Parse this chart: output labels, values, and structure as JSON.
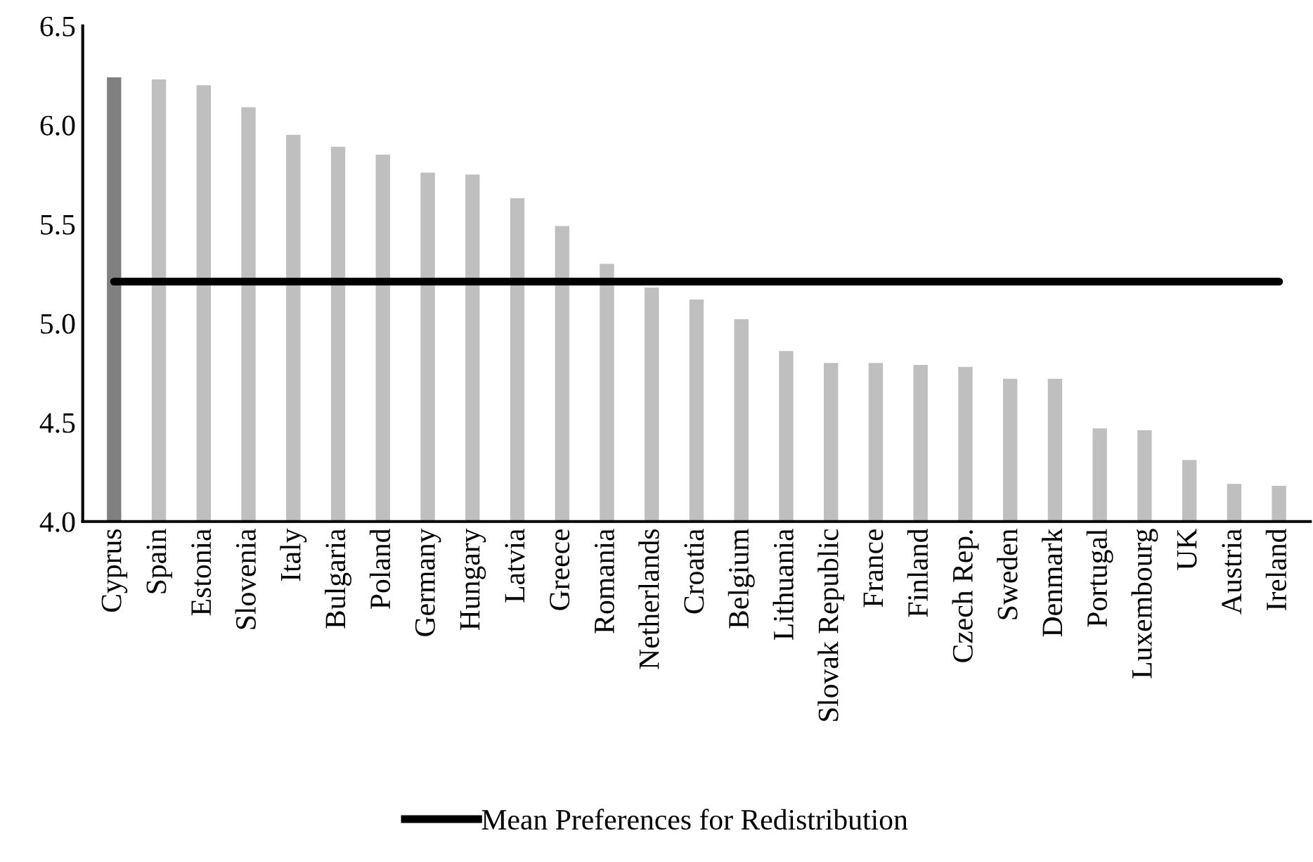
{
  "chart_data": {
    "type": "bar",
    "categories": [
      "Cyprus",
      "Spain",
      "Estonia",
      "Slovenia",
      "Italy",
      "Bulgaria",
      "Poland",
      "Germany",
      "Hungary",
      "Latvia",
      "Greece",
      "Romania",
      "Netherlands",
      "Croatia",
      "Belgium",
      "Lithuania",
      "Slovak Republic",
      "France",
      "Finland",
      "Czech Rep.",
      "Sweden",
      "Denmark",
      "Portugal",
      "Luxembourg",
      "UK",
      "Austria",
      "Ireland"
    ],
    "series": [
      {
        "colors": [
          "#808080",
          "#bfbfbf",
          "#bfbfbf",
          "#bfbfbf",
          "#bfbfbf",
          "#bfbfbf",
          "#bfbfbf",
          "#bfbfbf",
          "#bfbfbf",
          "#bfbfbf",
          "#bfbfbf",
          "#bfbfbf",
          "#bfbfbf",
          "#bfbfbf",
          "#bfbfbf",
          "#bfbfbf",
          "#bfbfbf",
          "#bfbfbf",
          "#bfbfbf",
          "#bfbfbf",
          "#bfbfbf",
          "#bfbfbf",
          "#bfbfbf",
          "#bfbfbf",
          "#bfbfbf",
          "#bfbfbf",
          "#bfbfbf"
        ],
        "values": [
          6.24,
          6.23,
          6.2,
          6.09,
          5.95,
          5.89,
          5.85,
          5.76,
          5.75,
          5.63,
          5.49,
          5.3,
          5.18,
          5.12,
          5.02,
          4.86,
          4.8,
          4.8,
          4.79,
          4.78,
          4.72,
          4.72,
          4.47,
          4.46,
          4.31,
          4.19,
          4.18
        ]
      },
      {
        "type": "line",
        "name": "Mean Preferences for Redistribution",
        "color": "#000000",
        "values": [
          5.21,
          5.21,
          5.21,
          5.21,
          5.21,
          5.21,
          5.21,
          5.21,
          5.21,
          5.21,
          5.21,
          5.21,
          5.21,
          5.21,
          5.21,
          5.21,
          5.21,
          5.21,
          5.21,
          5.21,
          5.21,
          5.21,
          5.21,
          5.21,
          5.21,
          5.21,
          5.21
        ]
      }
    ],
    "ylim": [
      4.0,
      6.5
    ],
    "yticks": [
      {
        "value": 4.0,
        "label": "4.0"
      },
      {
        "value": 4.5,
        "label": "4.5"
      },
      {
        "value": 5.0,
        "label": "5.0"
      },
      {
        "value": 5.5,
        "label": "5.5"
      },
      {
        "value": 6.0,
        "label": "6.0"
      },
      {
        "value": 6.5,
        "label": "6.5"
      }
    ],
    "grid": false,
    "legend": "bottom",
    "marker": "none"
  }
}
